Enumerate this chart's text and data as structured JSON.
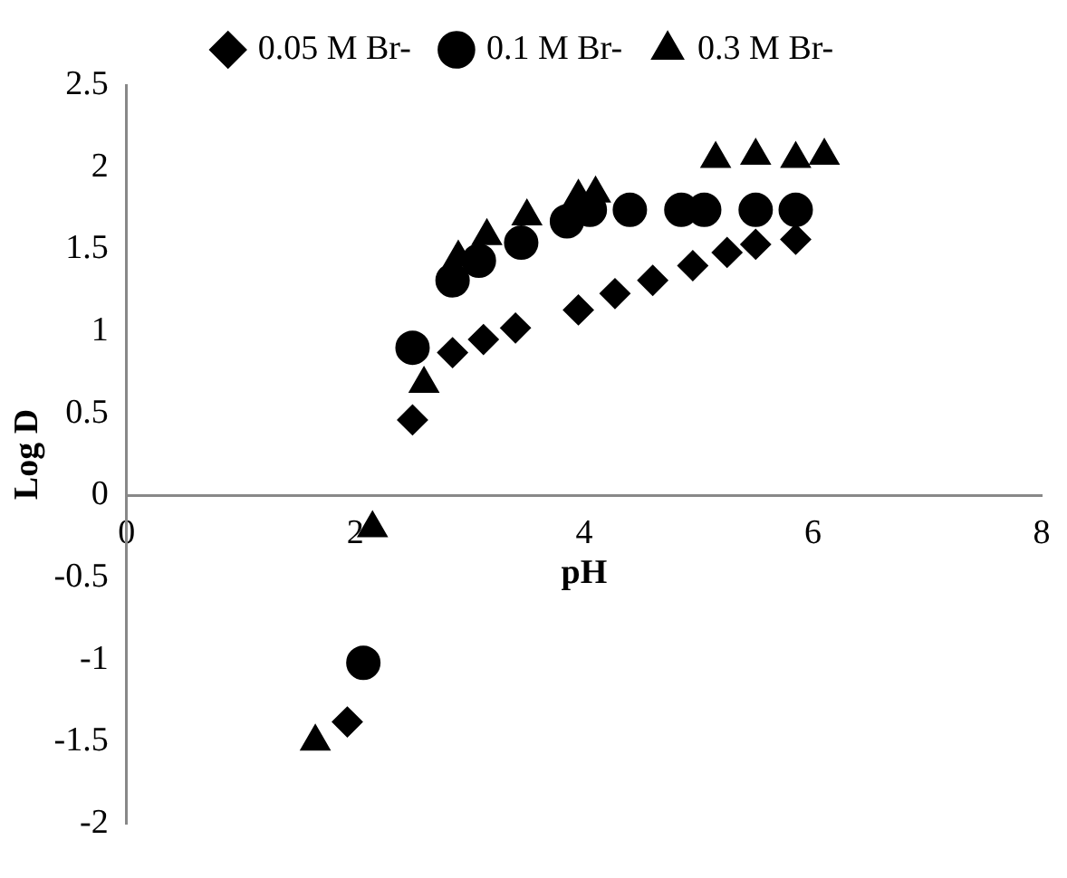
{
  "chart_data": {
    "type": "scatter",
    "xlabel": "pH",
    "ylabel": "Log D",
    "xlim": [
      0,
      8
    ],
    "xticks": [
      0,
      2,
      4,
      6,
      8
    ],
    "ylim": [
      -2,
      2.5
    ],
    "yticks": [
      -2,
      -1.5,
      -1,
      -0.5,
      0,
      0.5,
      1,
      1.5,
      2,
      2.5
    ],
    "grid": false,
    "legend": "top",
    "series": [
      {
        "name": "0.05 M Br-",
        "color": "#000000",
        "marker": "diamond",
        "x": [
          1.93,
          2.5,
          2.85,
          3.12,
          3.4,
          3.95,
          4.27,
          4.6,
          4.95,
          5.25,
          5.5,
          5.85
        ],
        "values": [
          -1.38,
          0.46,
          0.87,
          0.95,
          1.02,
          1.13,
          1.23,
          1.31,
          1.4,
          1.48,
          1.53,
          1.56
        ]
      },
      {
        "name": "0.1 M Br-",
        "color": "#000000",
        "marker": "circle",
        "x": [
          2.07,
          2.5,
          2.85,
          3.08,
          3.45,
          3.85,
          4.05,
          4.4,
          4.85,
          5.05,
          5.5,
          5.85
        ],
        "values": [
          -1.02,
          0.9,
          1.31,
          1.43,
          1.54,
          1.67,
          1.74,
          1.74,
          1.74,
          1.74,
          1.74,
          1.74
        ]
      },
      {
        "name": "0.3 M Br-",
        "color": "#000000",
        "marker": "triangle",
        "x": [
          1.65,
          2.15,
          2.6,
          2.9,
          3.15,
          3.5,
          3.95,
          4.1,
          5.15,
          5.5,
          5.85,
          6.1
        ],
        "values": [
          -1.5,
          -0.2,
          0.68,
          1.45,
          1.58,
          1.7,
          1.82,
          1.84,
          2.05,
          2.07,
          2.05,
          2.07
        ]
      }
    ]
  }
}
